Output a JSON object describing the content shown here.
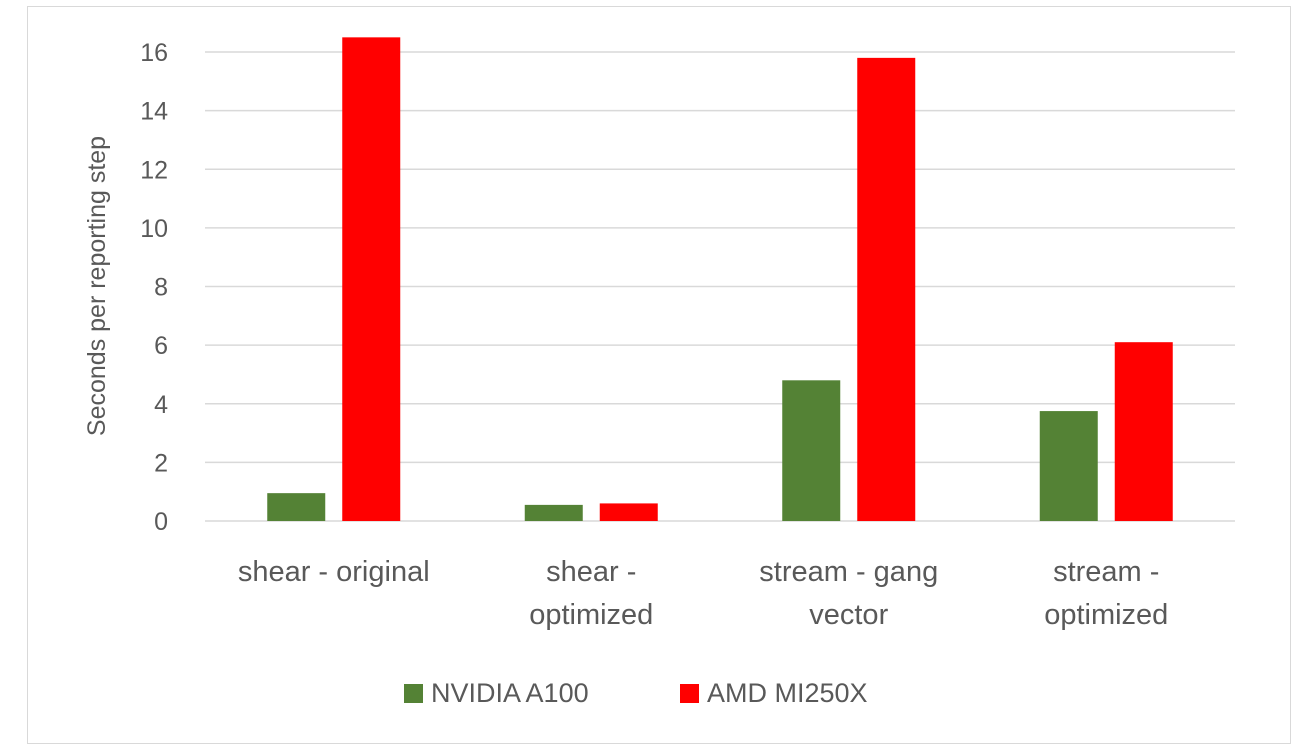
{
  "chart_data": {
    "type": "bar",
    "title": "",
    "xlabel": "",
    "ylabel": "Seconds per reporting step",
    "ylim": [
      0,
      16
    ],
    "yticks": [
      0,
      2,
      4,
      6,
      8,
      10,
      12,
      14,
      16
    ],
    "grid": true,
    "legend_position": "bottom",
    "categories": [
      [
        "shear - original"
      ],
      [
        "shear -",
        "optimized"
      ],
      [
        "stream - gang",
        "vector"
      ],
      [
        "stream -",
        "optimized"
      ]
    ],
    "series": [
      {
        "name": "NVIDIA A100",
        "color": "#548235",
        "values": [
          0.95,
          0.55,
          4.8,
          3.75
        ]
      },
      {
        "name": "AMD MI250X",
        "color": "#ff0000",
        "values": [
          16.5,
          0.6,
          15.8,
          6.1
        ]
      }
    ]
  }
}
